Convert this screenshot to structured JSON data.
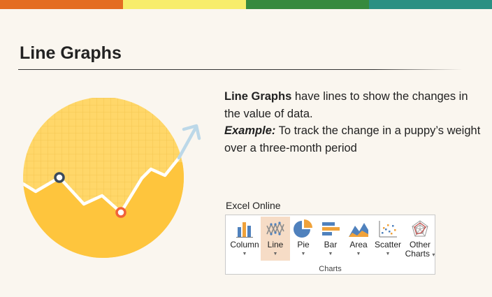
{
  "colors": {
    "bar": [
      "#e46d22",
      "#f7ed6b",
      "#378a3e",
      "#2b9083"
    ],
    "circle_light": "#ffd769",
    "circle_dark": "#fec53d",
    "line": "#ffffff",
    "arrow": "#bcd8e8",
    "marker_navy": "#3a4a5c",
    "marker_orange": "#f0623a",
    "selected_bg": "#f6dcc6"
  },
  "header": {
    "title": "Line Graphs"
  },
  "description": {
    "lead": "Line Graphs",
    "text1": " have lines to show the changes in the value of data.",
    "example_label": "Example:",
    "text2": " To track the change in a puppy’s weight over a three-month period"
  },
  "excel": {
    "label": "Excel Online",
    "group_label": "Charts",
    "items": [
      {
        "label": "Column",
        "icon": "column-chart-icon"
      },
      {
        "label": "Line",
        "icon": "line-chart-icon",
        "selected": true
      },
      {
        "label": "Pie",
        "icon": "pie-chart-icon"
      },
      {
        "label": "Bar",
        "icon": "bar-chart-icon"
      },
      {
        "label": "Area",
        "icon": "area-chart-icon"
      },
      {
        "label": "Scatter",
        "icon": "scatter-chart-icon"
      },
      {
        "label": "Other Charts",
        "icon": "radar-chart-icon"
      }
    ]
  }
}
